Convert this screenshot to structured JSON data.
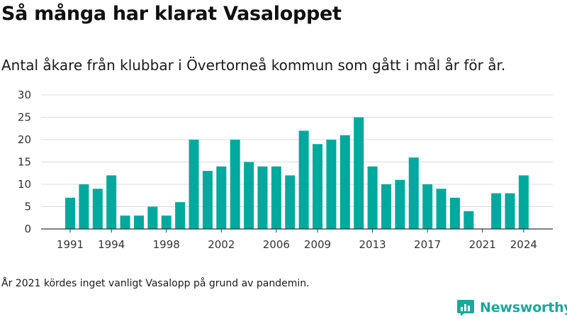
{
  "title": "Så många har klarat Vasaloppet",
  "subtitle": "Antal åkare från klubbar i Övertorneå kommun som gått i mål år för år.",
  "footnote": "År 2021 kördes inget vanligt Vasalopp på grund av pandemin.",
  "brand": {
    "name": "Newsworthy",
    "icon": "bar-chart-speech-icon"
  },
  "colors": {
    "bar": "#00a99d",
    "grid": "#dcdcdc",
    "axis": "#333333",
    "brand": "#1aa89a"
  },
  "chart_data": {
    "type": "bar",
    "categories": [
      1991,
      1992,
      1993,
      1994,
      1995,
      1996,
      1997,
      1998,
      1999,
      2000,
      2001,
      2002,
      2003,
      2004,
      2005,
      2006,
      2007,
      2008,
      2009,
      2010,
      2011,
      2012,
      2013,
      2014,
      2015,
      2016,
      2017,
      2018,
      2019,
      2020,
      2021,
      2022,
      2023,
      2024
    ],
    "values": [
      7,
      10,
      9,
      12,
      3,
      3,
      5,
      3,
      6,
      20,
      13,
      14,
      20,
      15,
      14,
      14,
      12,
      22,
      19,
      20,
      21,
      25,
      14,
      10,
      11,
      16,
      10,
      9,
      7,
      4,
      0,
      8,
      8,
      12
    ],
    "xticks": [
      "1991",
      "1994",
      "1998",
      "2002",
      "2006",
      "2009",
      "2013",
      "2017",
      "2021",
      "2024"
    ],
    "yticks": [
      "0",
      "5",
      "10",
      "15",
      "20",
      "25",
      "30"
    ],
    "ylim": [
      0,
      30
    ],
    "grid": true,
    "title": "",
    "xlabel": "",
    "ylabel": ""
  }
}
